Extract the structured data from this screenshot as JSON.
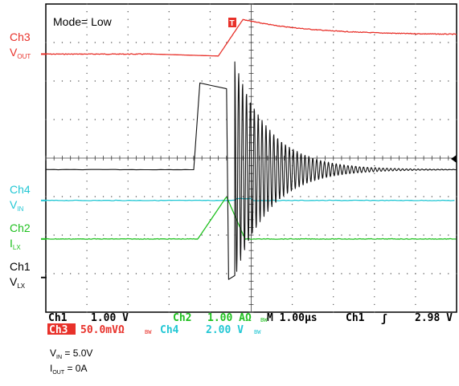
{
  "mode_label": "Mode= Low",
  "channels": [
    {
      "id": "ch3",
      "name": "Ch3",
      "signal": "V",
      "signal_sub": "OUT",
      "color": "#e8312a",
      "ref_level_div": -2.7
    },
    {
      "id": "ch4",
      "name": "Ch4",
      "signal": "V",
      "signal_sub": "IN",
      "color": "#22c7d4",
      "ref_level_div": 1.1
    },
    {
      "id": "ch2",
      "name": "Ch2",
      "signal": "I",
      "signal_sub": "LX",
      "color": "#1fc01f",
      "ref_level_div": 2.1
    },
    {
      "id": "ch1",
      "name": "Ch1",
      "signal": "V",
      "signal_sub": "LX",
      "color": "#111111",
      "ref_level_div": 3.1
    }
  ],
  "trigger_marker": "T",
  "status_bar": {
    "ch1_label": "Ch1",
    "ch1_scale": "1.00 V",
    "ch2_label": "Ch2",
    "ch2_scale": "1.00 AΩ",
    "bw_mark": "BW",
    "time_label": "M 1.00µs",
    "trig_source": "Ch1",
    "trig_slope": "ʃ",
    "trig_level": "2.98 V",
    "ch3_label": "Ch3",
    "ch3_scale": "50.0mVΩ",
    "ch4_label": "Ch4",
    "ch4_scale": "2.00 V"
  },
  "conditions": [
    {
      "symbol": "V",
      "sub": "IN",
      "text": " = 5.0V"
    },
    {
      "symbol": "I",
      "sub": "OUT",
      "text": " = 0A"
    }
  ],
  "chart_data": {
    "type": "line",
    "x_divisions": 10,
    "y_divisions": 8,
    "time_per_div": "1.00µs",
    "grid": true,
    "series": [
      {
        "channel": "Ch3",
        "x_div": [
          0,
          2.6,
          4.2,
          4.5,
          4.8,
          6,
          10
        ],
        "y_div": [
          -2.7,
          -2.65,
          -2.65,
          -3.35,
          -3.6,
          -3.35,
          -3.2
        ]
      },
      {
        "channel": "Ch4",
        "x_div": [
          0,
          4.6,
          5.0,
          10
        ],
        "y_div": [
          1.1,
          1.1,
          1.05,
          1.1
        ]
      },
      {
        "channel": "Ch2",
        "x_div": [
          0,
          3.7,
          4.4,
          4.7,
          4.85,
          10
        ],
        "y_div": [
          2.1,
          2.1,
          1.0,
          1.6,
          2.1,
          2.1
        ]
      },
      {
        "channel": "Ch1",
        "x_div": [
          0,
          3.7,
          3.75,
          4.4,
          4.45,
          4.6,
          5.0,
          6.0,
          10
        ],
        "y_div": [
          0.3,
          0.3,
          -1.95,
          -1.8,
          3.1,
          3.05,
          -2.9,
          0.3,
          0.3
        ]
      }
    ]
  }
}
